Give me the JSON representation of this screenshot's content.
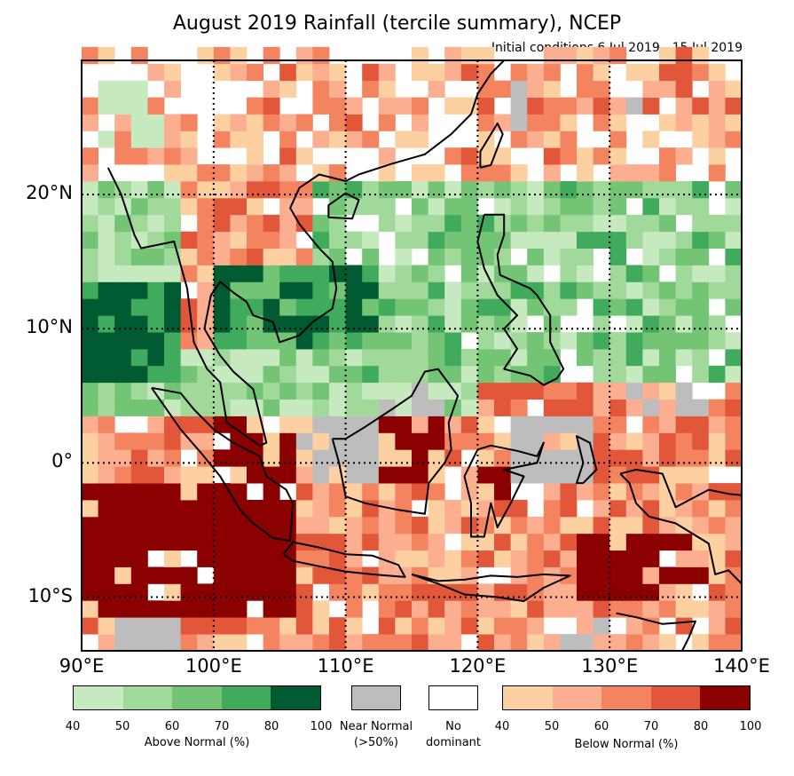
{
  "title": "August 2019 Rainfall (tercile summary), NCEP",
  "subtitle": "Initial conditions 6 Jul 2019 - 15 Jul 2019",
  "map_extent": {
    "lon": [
      90,
      140
    ],
    "lat": [
      -14,
      30
    ]
  },
  "lat_ticks": [
    {
      "value": 20,
      "label": "20°N"
    },
    {
      "value": 10,
      "label": "10°N"
    },
    {
      "value": 0,
      "label": "0°"
    },
    {
      "value": -10,
      "label": "10°S"
    }
  ],
  "lon_ticks": [
    {
      "value": 90,
      "label": "90°E"
    },
    {
      "value": 100,
      "label": "100°E"
    },
    {
      "value": 110,
      "label": "110°E"
    },
    {
      "value": 120,
      "label": "120°E"
    },
    {
      "value": 130,
      "label": "130°E"
    },
    {
      "value": 140,
      "label": "140°E"
    }
  ],
  "colors": {
    "above": [
      "#c7e9c0",
      "#a1d99b",
      "#74c476",
      "#41ab5d",
      "#005a32"
    ],
    "below": [
      "#fdd0a2",
      "#fcae91",
      "#f4845f",
      "#e2573a",
      "#8b0000"
    ],
    "near_normal": "#bdbdbd",
    "no_dominant": "#ffffff"
  },
  "legend": {
    "above": {
      "label": "Above Normal (%)",
      "ticks": [
        "40",
        "50",
        "60",
        "70",
        "80",
        "100"
      ]
    },
    "near": {
      "label_line1": "Near Normal",
      "label_line2": "(>50%)"
    },
    "none": {
      "label_line1": "No",
      "label_line2": "dominant"
    },
    "below": {
      "label": "Below Normal (%)",
      "ticks": [
        "40",
        "50",
        "60",
        "70",
        "80",
        "100"
      ]
    }
  }
}
